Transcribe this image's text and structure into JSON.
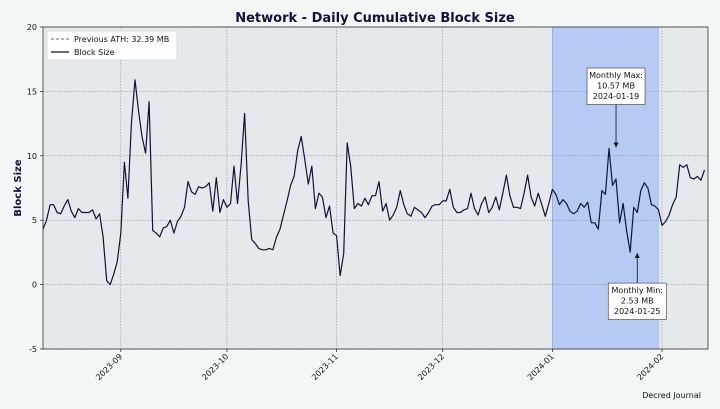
{
  "chart_data": {
    "type": "line",
    "title": "Network - Daily Cumulative Block Size",
    "ylabel": "Block Size",
    "xlabel": "",
    "ylim": [
      -5,
      20
    ],
    "xlim": [
      "2023-08-10",
      "2024-02-14"
    ],
    "yticks": [
      -5,
      0,
      5,
      10,
      15,
      20
    ],
    "xticks": [
      "2023-09",
      "2023-10",
      "2023-11",
      "2023-12",
      "2024-01",
      "2024-02"
    ],
    "grid": true,
    "legend_position": "top-left",
    "reference_line": {
      "label": "Previous ATH: 32.39 MB",
      "value": 32.39
    },
    "shaded_region": {
      "start": "2024-01-01",
      "end": "2024-01-31",
      "color": "#b7caf3"
    },
    "annotations": [
      {
        "text": [
          "Monthly Max:",
          "10.57 MB",
          "2024-01-19"
        ],
        "date": "2024-01-19",
        "value": 10.57,
        "text_value": 15.4
      },
      {
        "text": [
          "Monthly Min:",
          "2.53 MB",
          "2024-01-25"
        ],
        "date": "2024-01-25",
        "value": 2.53,
        "text_value": -1.3
      }
    ],
    "series": [
      {
        "name": "Block Size",
        "color": "#0d1537",
        "start_date": "2023-08-10",
        "values": [
          4.3,
          5,
          6.2,
          6.2,
          5.6,
          5.5,
          6.1,
          6.6,
          5.7,
          5.2,
          5.9,
          5.6,
          5.6,
          5.6,
          5.8,
          5.1,
          5.5,
          3.7,
          0.3,
          0,
          0.8,
          1.8,
          4,
          9.5,
          6.7,
          12.5,
          15.9,
          13.5,
          11.5,
          10.2,
          14.2,
          4.2,
          4,
          3.7,
          4.4,
          4.5,
          5,
          4,
          4.9,
          5.3,
          6,
          8,
          7.2,
          7,
          7.6,
          7.5,
          7.6,
          7.9,
          5.7,
          8.3,
          5.6,
          6.6,
          6,
          6.3,
          9.2,
          6.3,
          9.3,
          13.3,
          6.5,
          3.5,
          3.2,
          2.8,
          2.7,
          2.7,
          2.8,
          2.7,
          3.7,
          4.3,
          5.4,
          6.5,
          7.7,
          8.4,
          10.4,
          11.5,
          9.7,
          7.8,
          9.2,
          5.9,
          7.1,
          6.8,
          5.2,
          6.1,
          4,
          3.8,
          0.7,
          2.4,
          11,
          9.2,
          5.9,
          6.3,
          6.1,
          6.7,
          6.2,
          6.9,
          6.9,
          8,
          5.7,
          6.3,
          5,
          5.4,
          6,
          7.3,
          6.2,
          5.5,
          5.3,
          6,
          5.8,
          5.6,
          5.2,
          5.6,
          6.1,
          6.2,
          6.2,
          6.5,
          6.5,
          7.4,
          6,
          5.6,
          5.6,
          5.8,
          5.9,
          7.1,
          5.9,
          5.4,
          6.3,
          6.8,
          5.6,
          6,
          6.8,
          5.8,
          7.1,
          8.5,
          6.9,
          6,
          6,
          5.9,
          7.1,
          8.5,
          6.8,
          6.1,
          7.1,
          6.2,
          5.3,
          6.3,
          7.4,
          7,
          6.2,
          6.6,
          6.3,
          5.7,
          5.5,
          5.7,
          6.3,
          6,
          6.4,
          4.8,
          4.8,
          4.3,
          7.3,
          7,
          10.57,
          7.7,
          8.2,
          4.8,
          6.3,
          4.2,
          2.53,
          6,
          5.6,
          7.3,
          7.9,
          7.5,
          6.2,
          6.1,
          5.8,
          4.6,
          4.9,
          5.4,
          6.2,
          6.8,
          9.3,
          9.1,
          9.3,
          8.3,
          8.2,
          8.4,
          8.1,
          8.9
        ]
      }
    ]
  },
  "footer": {
    "source": "Decred Journal"
  }
}
